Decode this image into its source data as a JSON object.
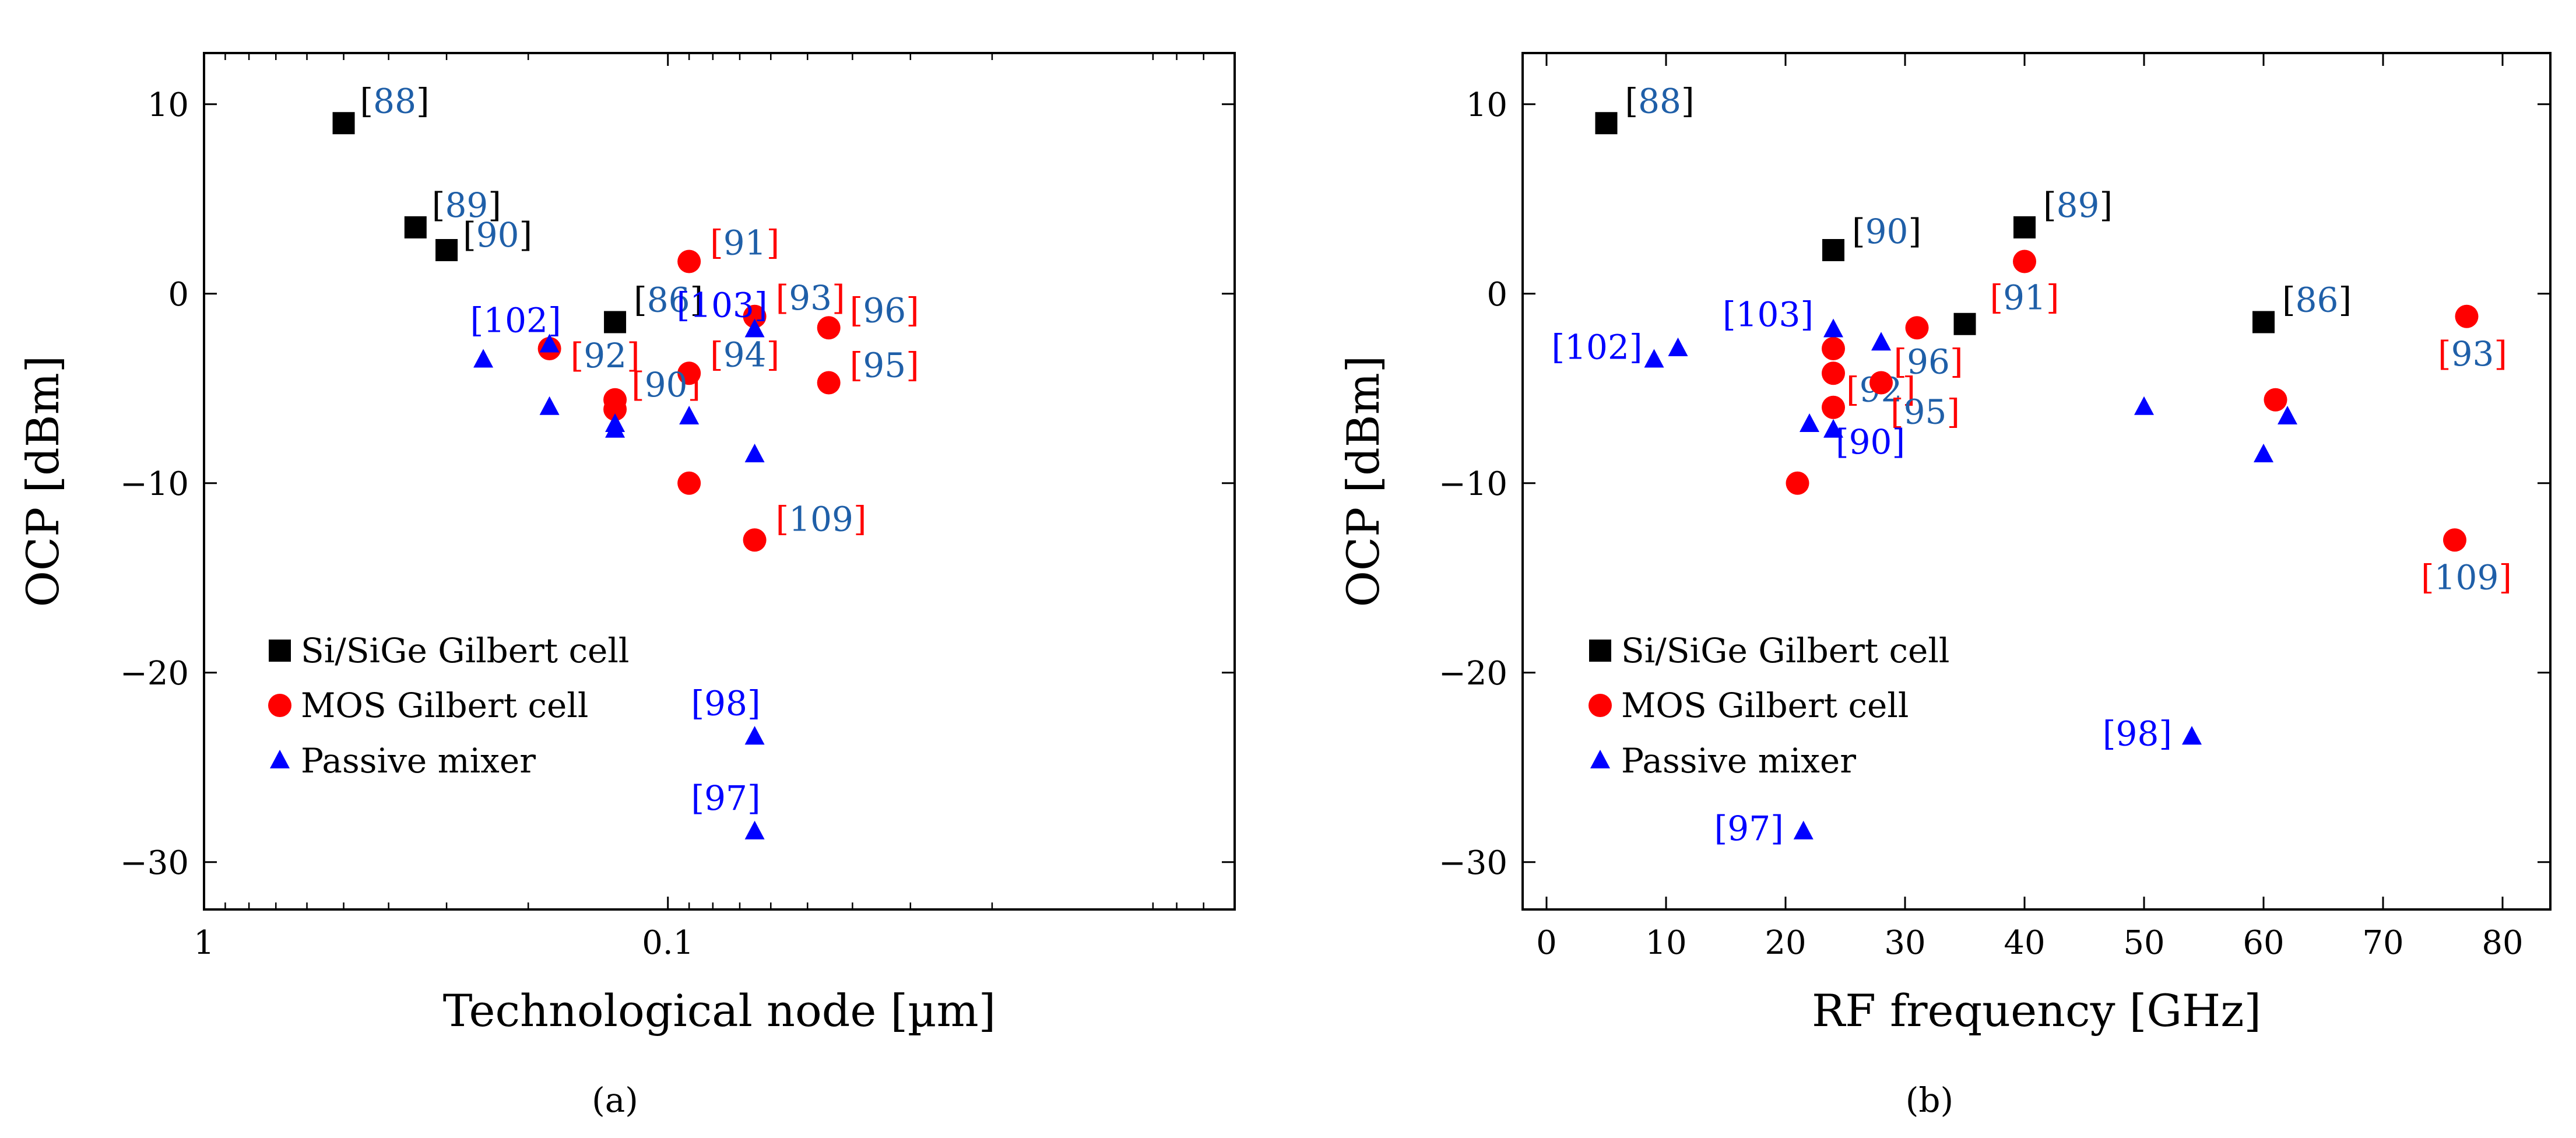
{
  "colors": {
    "si_sige": "#000000",
    "mos": "#ff0000",
    "passive": "#0000ff",
    "ref_blue": "#1f5fa8",
    "ref_red": "#ff0000",
    "ref_black": "#000000",
    "axis": "#000000"
  },
  "legend_entries": [
    "Si/SiGe Gilbert cell",
    "MOS Gilbert cell",
    "Passive mixer"
  ],
  "subcaptions": [
    "(a)",
    "(b)"
  ],
  "chart_data": [
    {
      "type": "scatter",
      "title": "",
      "xlabel": "Technological node [µm]",
      "ylabel": "OCP [dBm]",
      "x_scale": "log",
      "x_reversed": true,
      "xlim": [
        1,
        0.006
      ],
      "ylim": [
        -32.5,
        12.7
      ],
      "x_ticks": [
        1,
        0.1
      ],
      "x_tick_labels": [
        "1",
        "0.1"
      ],
      "y_ticks": [
        10,
        0,
        -10,
        -20,
        -30
      ],
      "y_tick_labels": [
        "10",
        "0",
        "−10",
        "−20",
        "−30"
      ],
      "legend_position": "lower-left",
      "series": [
        {
          "name": "Si/SiGe Gilbert cell",
          "marker": "square",
          "points": [
            {
              "x": 0.5,
              "y": 9,
              "ref": "88"
            },
            {
              "x": 0.35,
              "y": 3.5,
              "ref": "89"
            },
            {
              "x": 0.3,
              "y": 2.3,
              "ref": "90"
            },
            {
              "x": 0.13,
              "y": -1.5,
              "ref": "86"
            }
          ]
        },
        {
          "name": "MOS Gilbert cell",
          "marker": "circle",
          "points": [
            {
              "x": 0.09,
              "y": 1.7,
              "ref": "91"
            },
            {
              "x": 0.065,
              "y": -1.2,
              "ref": "93"
            },
            {
              "x": 0.045,
              "y": -1.8,
              "ref": "96"
            },
            {
              "x": 0.18,
              "y": -2.9,
              "ref": "92"
            },
            {
              "x": 0.09,
              "y": -4.2,
              "ref": "94"
            },
            {
              "x": 0.045,
              "y": -4.7,
              "ref": "95"
            },
            {
              "x": 0.13,
              "y": -5.6,
              "ref": "90"
            },
            {
              "x": 0.13,
              "y": -6.1,
              "ref": ""
            },
            {
              "x": 0.09,
              "y": -10,
              "ref": ""
            },
            {
              "x": 0.065,
              "y": -13,
              "ref": "109"
            }
          ]
        },
        {
          "name": "Passive mixer",
          "marker": "triangle",
          "points": [
            {
              "x": 0.25,
              "y": -3.5,
              "ref": ""
            },
            {
              "x": 0.18,
              "y": -2.7,
              "ref": "102"
            },
            {
              "x": 0.065,
              "y": -1.9,
              "ref": "103"
            },
            {
              "x": 0.18,
              "y": -6,
              "ref": ""
            },
            {
              "x": 0.13,
              "y": -6.9,
              "ref": ""
            },
            {
              "x": 0.13,
              "y": -7.2,
              "ref": ""
            },
            {
              "x": 0.09,
              "y": -6.5,
              "ref": ""
            },
            {
              "x": 0.065,
              "y": -8.5,
              "ref": ""
            },
            {
              "x": 0.065,
              "y": -23.4,
              "ref": "98"
            },
            {
              "x": 0.065,
              "y": -28.4,
              "ref": "97"
            }
          ]
        }
      ]
    },
    {
      "type": "scatter",
      "title": "",
      "xlabel": "RF frequency [GHz]",
      "ylabel": "OCP [dBm]",
      "x_scale": "linear",
      "xlim": [
        -2,
        84
      ],
      "ylim": [
        -32.5,
        12.7
      ],
      "x_ticks": [
        0,
        10,
        20,
        30,
        40,
        50,
        60,
        70,
        80
      ],
      "x_tick_labels": [
        "0",
        "10",
        "20",
        "30",
        "40",
        "50",
        "60",
        "70",
        "80"
      ],
      "y_ticks": [
        10,
        0,
        -10,
        -20,
        -30
      ],
      "y_tick_labels": [
        "10",
        "0",
        "−10",
        "−20",
        "−30"
      ],
      "legend_position": "lower-left",
      "series": [
        {
          "name": "Si/SiGe Gilbert cell",
          "marker": "square",
          "points": [
            {
              "x": 5,
              "y": 9,
              "ref": "88"
            },
            {
              "x": 24,
              "y": 2.3,
              "ref": "90"
            },
            {
              "x": 40,
              "y": 3.5,
              "ref": "89"
            },
            {
              "x": 35,
              "y": -1.6,
              "ref": ""
            },
            {
              "x": 60,
              "y": -1.5,
              "ref": "86"
            }
          ]
        },
        {
          "name": "MOS Gilbert cell",
          "marker": "circle",
          "points": [
            {
              "x": 40,
              "y": 1.7,
              "ref": "91"
            },
            {
              "x": 24,
              "y": -2.9,
              "ref": ""
            },
            {
              "x": 24,
              "y": -4.2,
              "ref": "92"
            },
            {
              "x": 24,
              "y": -6,
              "ref": ""
            },
            {
              "x": 31,
              "y": -1.8,
              "ref": "96"
            },
            {
              "x": 28,
              "y": -4.7,
              "ref": "95"
            },
            {
              "x": 21,
              "y": -10,
              "ref": ""
            },
            {
              "x": 61,
              "y": -5.6,
              "ref": ""
            },
            {
              "x": 77,
              "y": -1.2,
              "ref": "93"
            },
            {
              "x": 76,
              "y": -13,
              "ref": "109"
            }
          ]
        },
        {
          "name": "Passive mixer",
          "marker": "triangle",
          "points": [
            {
              "x": 9,
              "y": -3.5,
              "ref": "102"
            },
            {
              "x": 11,
              "y": -2.9,
              "ref": ""
            },
            {
              "x": 24,
              "y": -1.9,
              "ref": "103"
            },
            {
              "x": 28,
              "y": -2.6,
              "ref": ""
            },
            {
              "x": 22,
              "y": -6.9,
              "ref": ""
            },
            {
              "x": 24,
              "y": -7.2,
              "ref": "90"
            },
            {
              "x": 50,
              "y": -6,
              "ref": ""
            },
            {
              "x": 60,
              "y": -8.5,
              "ref": ""
            },
            {
              "x": 62,
              "y": -6.5,
              "ref": ""
            },
            {
              "x": 54,
              "y": -23.4,
              "ref": "98"
            },
            {
              "x": 21.5,
              "y": -28.4,
              "ref": "97"
            }
          ]
        }
      ]
    }
  ]
}
